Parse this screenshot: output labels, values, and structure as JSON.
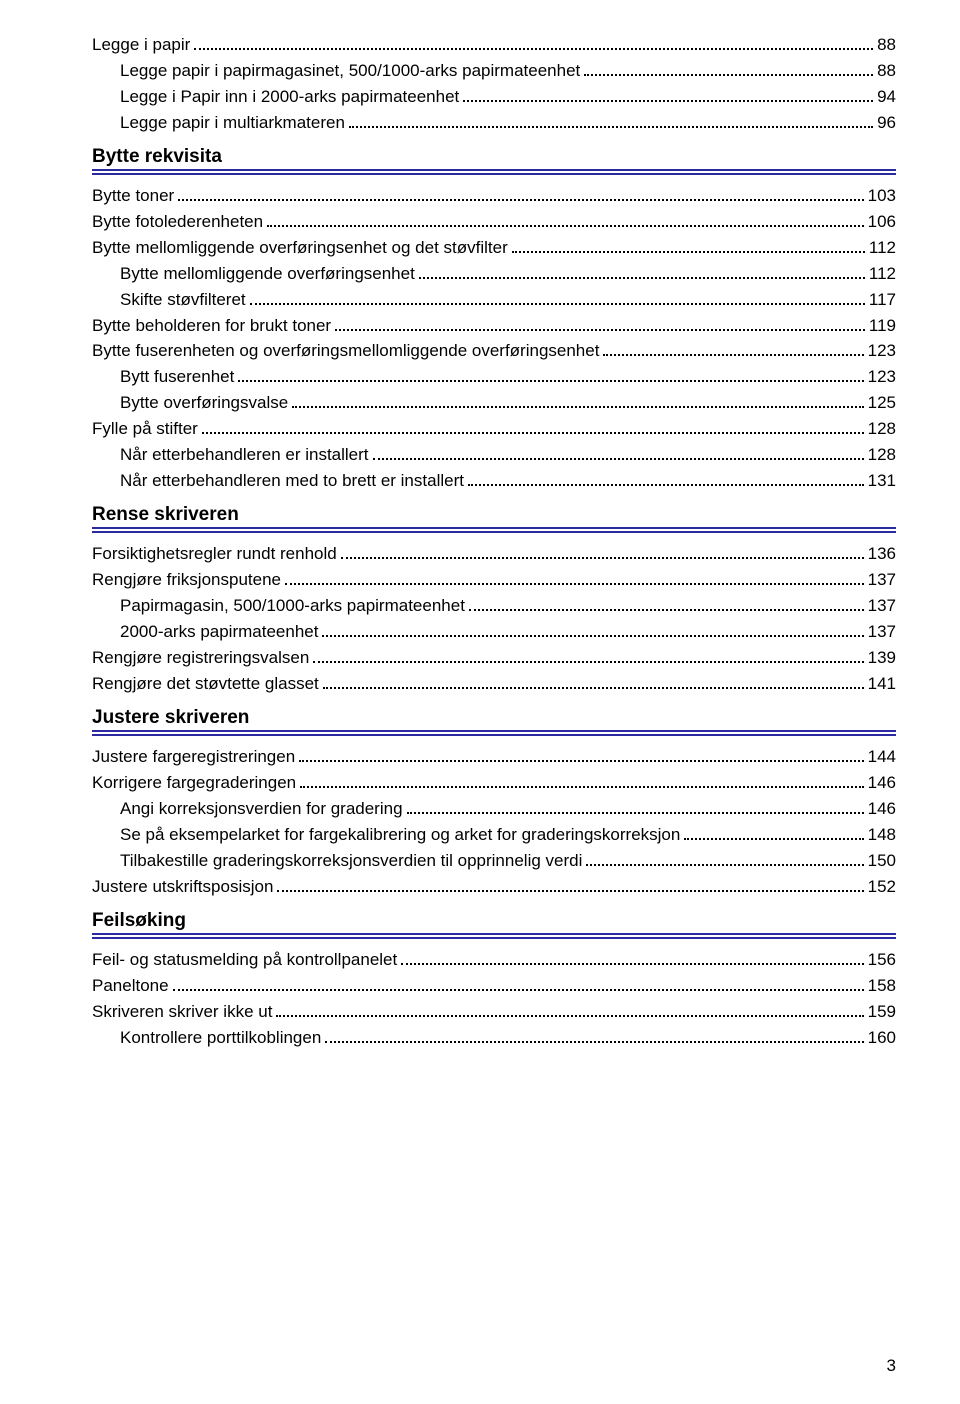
{
  "page_number": "3",
  "colors": {
    "rule": "#2b2aa0",
    "text": "#000000",
    "dots": "#000000",
    "bg": "#ffffff"
  },
  "toc": [
    {
      "type": "entry",
      "level": 0,
      "label": "Legge i papir",
      "page": "88"
    },
    {
      "type": "entry",
      "level": 1,
      "label": "Legge papir i papirmagasinet, 500/1000-arks papirmateenhet",
      "page": "88"
    },
    {
      "type": "entry",
      "level": 1,
      "label": "Legge i Papir inn i 2000-arks papirmateenhet",
      "page": "94"
    },
    {
      "type": "entry",
      "level": 1,
      "label": "Legge papir i multiarkmateren",
      "page": "96"
    },
    {
      "type": "section",
      "title": "Bytte rekvisita"
    },
    {
      "type": "entry",
      "level": 0,
      "label": "Bytte toner",
      "page": "103"
    },
    {
      "type": "entry",
      "level": 0,
      "label": "Bytte fotolederenheten",
      "page": "106"
    },
    {
      "type": "entry",
      "level": 0,
      "label": "Bytte mellomliggende overføringsenhet og det støvfilter",
      "page": "112"
    },
    {
      "type": "entry",
      "level": 1,
      "label": "Bytte mellomliggende overføringsenhet",
      "page": "112"
    },
    {
      "type": "entry",
      "level": 1,
      "label": "Skifte støvfilteret",
      "page": "117"
    },
    {
      "type": "entry",
      "level": 0,
      "label": "Bytte beholderen for brukt toner",
      "page": "119"
    },
    {
      "type": "entry",
      "level": 0,
      "label": "Bytte fuserenheten og overføringsmellomliggende overføringsenhet",
      "page": "123"
    },
    {
      "type": "entry",
      "level": 1,
      "label": "Bytt fuserenhet",
      "page": "123"
    },
    {
      "type": "entry",
      "level": 1,
      "label": "Bytte overføringsvalse",
      "page": "125"
    },
    {
      "type": "entry",
      "level": 0,
      "label": "Fylle på stifter",
      "page": "128"
    },
    {
      "type": "entry",
      "level": 1,
      "label": "Når etterbehandleren er installert",
      "page": "128"
    },
    {
      "type": "entry",
      "level": 1,
      "label": "Når etterbehandleren med to brett er installert",
      "page": "131"
    },
    {
      "type": "section",
      "title": "Rense skriveren"
    },
    {
      "type": "entry",
      "level": 0,
      "label": "Forsiktighetsregler rundt renhold",
      "page": "136"
    },
    {
      "type": "entry",
      "level": 0,
      "label": "Rengjøre friksjonsputene",
      "page": "137"
    },
    {
      "type": "entry",
      "level": 1,
      "label": "Papirmagasin, 500/1000-arks papirmateenhet",
      "page": "137"
    },
    {
      "type": "entry",
      "level": 1,
      "label": "2000-arks papirmateenhet",
      "page": "137"
    },
    {
      "type": "entry",
      "level": 0,
      "label": "Rengjøre registreringsvalsen",
      "page": "139"
    },
    {
      "type": "entry",
      "level": 0,
      "label": "Rengjøre det støvtette glasset",
      "page": "141"
    },
    {
      "type": "section",
      "title": "Justere skriveren"
    },
    {
      "type": "entry",
      "level": 0,
      "label": "Justere fargeregistreringen",
      "page": "144"
    },
    {
      "type": "entry",
      "level": 0,
      "label": "Korrigere fargegraderingen",
      "page": "146"
    },
    {
      "type": "entry",
      "level": 1,
      "label": "Angi korreksjonsverdien for gradering",
      "page": "146"
    },
    {
      "type": "entry",
      "level": 1,
      "label": "Se på eksempelarket for fargekalibrering og arket for graderingskorreksjon",
      "page": "148"
    },
    {
      "type": "entry",
      "level": 1,
      "label": "Tilbakestille graderingskorreksjonsverdien til opprinnelig verdi",
      "page": "150"
    },
    {
      "type": "entry",
      "level": 0,
      "label": "Justere utskriftsposisjon",
      "page": "152"
    },
    {
      "type": "section",
      "title": "Feilsøking"
    },
    {
      "type": "entry",
      "level": 0,
      "label": "Feil- og statusmelding på kontrollpanelet",
      "page": "156"
    },
    {
      "type": "entry",
      "level": 0,
      "label": "Paneltone",
      "page": "158"
    },
    {
      "type": "entry",
      "level": 0,
      "label": "Skriveren skriver ikke ut",
      "page": "159"
    },
    {
      "type": "entry",
      "level": 1,
      "label": "Kontrollere porttilkoblingen",
      "page": "160"
    }
  ]
}
